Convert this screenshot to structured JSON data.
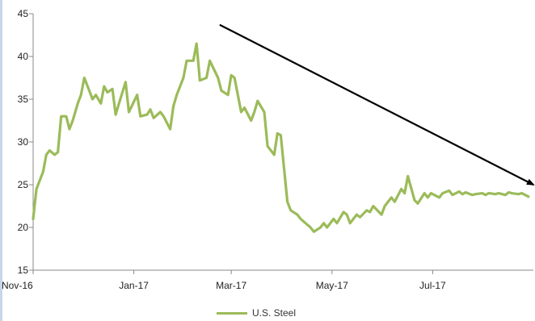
{
  "chart_data": {
    "type": "line",
    "title": "",
    "xlabel": "",
    "ylabel": "",
    "ylim": [
      15,
      45
    ],
    "yticks": [
      15,
      20,
      25,
      30,
      35,
      40,
      45
    ],
    "xticks": [
      "Nov-16",
      "Jan-17",
      "Mar-17",
      "May-17",
      "Jul-17"
    ],
    "grid": false,
    "legend_position": "bottom",
    "series": [
      {
        "name": "U.S. Steel",
        "color": "#9bbb59",
        "x": [
          "2016-11-01",
          "2016-11-03",
          "2016-11-07",
          "2016-11-09",
          "2016-11-11",
          "2016-11-14",
          "2016-11-16",
          "2016-11-18",
          "2016-11-21",
          "2016-11-23",
          "2016-11-25",
          "2016-11-28",
          "2016-11-30",
          "2016-12-02",
          "2016-12-05",
          "2016-12-07",
          "2016-12-09",
          "2016-12-12",
          "2016-12-14",
          "2016-12-16",
          "2016-12-19",
          "2016-12-21",
          "2016-12-23",
          "2016-12-27",
          "2016-12-29",
          "2017-01-03",
          "2017-01-05",
          "2017-01-09",
          "2017-01-11",
          "2017-01-13",
          "2017-01-17",
          "2017-01-19",
          "2017-01-23",
          "2017-01-25",
          "2017-01-27",
          "2017-01-31",
          "2017-02-02",
          "2017-02-06",
          "2017-02-08",
          "2017-02-10",
          "2017-02-14",
          "2017-02-16",
          "2017-02-21",
          "2017-02-23",
          "2017-02-27",
          "2017-03-01",
          "2017-03-03",
          "2017-03-07",
          "2017-03-09",
          "2017-03-13",
          "2017-03-15",
          "2017-03-17",
          "2017-03-21",
          "2017-03-23",
          "2017-03-27",
          "2017-03-29",
          "2017-03-31",
          "2017-04-04",
          "2017-04-06",
          "2017-04-10",
          "2017-04-12",
          "2017-04-18",
          "2017-04-20",
          "2017-04-24",
          "2017-04-26",
          "2017-04-28",
          "2017-05-02",
          "2017-05-04",
          "2017-05-08",
          "2017-05-10",
          "2017-05-12",
          "2017-05-16",
          "2017-05-18",
          "2017-05-22",
          "2017-05-24",
          "2017-05-26",
          "2017-05-31",
          "2017-06-02",
          "2017-06-06",
          "2017-06-08",
          "2017-06-12",
          "2017-06-14",
          "2017-06-16",
          "2017-06-20",
          "2017-06-22",
          "2017-06-26",
          "2017-06-28",
          "2017-06-30",
          "2017-07-05",
          "2017-07-07",
          "2017-07-11",
          "2017-07-13",
          "2017-07-17",
          "2017-07-19",
          "2017-07-21",
          "2017-07-25",
          "2017-07-27",
          "2017-07-31",
          "2017-08-02",
          "2017-08-04",
          "2017-08-08",
          "2017-08-10",
          "2017-08-14",
          "2017-08-16",
          "2017-08-18",
          "2017-08-22",
          "2017-08-24",
          "2017-08-28"
        ],
        "values": [
          21.0,
          24.5,
          26.5,
          28.5,
          29.0,
          28.5,
          28.8,
          33.0,
          33.0,
          31.5,
          32.5,
          34.5,
          35.5,
          37.5,
          36.0,
          35.0,
          35.5,
          34.5,
          36.5,
          35.8,
          36.2,
          33.2,
          34.5,
          37.0,
          33.5,
          35.5,
          33.0,
          33.2,
          33.8,
          32.8,
          33.5,
          33.0,
          31.5,
          34.2,
          35.5,
          37.5,
          39.5,
          39.5,
          41.5,
          37.2,
          37.5,
          39.5,
          37.5,
          36.0,
          35.5,
          37.8,
          37.5,
          33.5,
          34.0,
          32.5,
          33.5,
          34.8,
          33.5,
          29.5,
          28.5,
          31.0,
          30.8,
          23.0,
          22.0,
          21.5,
          21.0,
          20.0,
          19.5,
          20.0,
          20.5,
          20.0,
          21.0,
          20.5,
          21.8,
          21.5,
          20.5,
          21.5,
          21.2,
          22.0,
          21.8,
          22.5,
          21.5,
          22.5,
          23.5,
          23.0,
          24.5,
          24.0,
          26.0,
          23.2,
          22.8,
          24.0,
          23.5,
          24.0,
          23.5,
          24.0,
          24.3,
          23.8,
          24.2,
          23.9,
          24.1,
          23.8,
          23.9,
          24.0,
          23.8,
          24.0,
          23.9,
          24.0,
          23.8,
          24.1,
          24.0,
          23.9,
          24.0,
          23.6
        ]
      }
    ],
    "annotations": [
      {
        "type": "arrow",
        "from": [
          "2017-02-22",
          43.7
        ],
        "to": [
          "2017-08-31",
          25.0
        ]
      }
    ]
  }
}
